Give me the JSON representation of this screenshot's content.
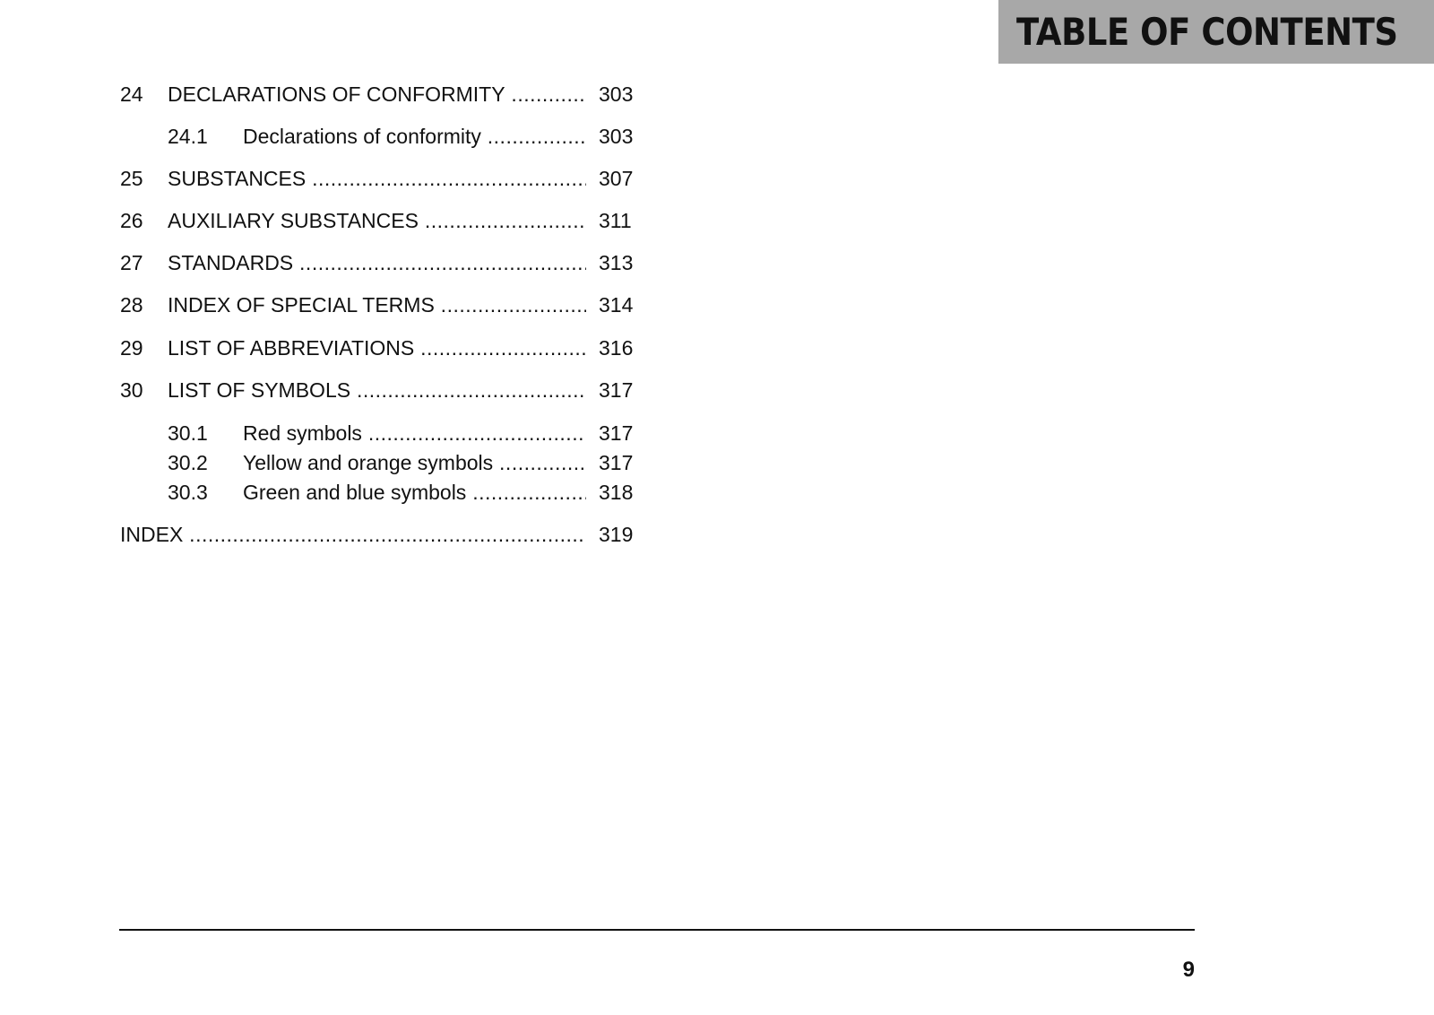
{
  "header": {
    "title": "TABLE OF CONTENTS",
    "background_color": "#a8a8a8"
  },
  "toc": {
    "entries": [
      {
        "level": "main",
        "number": "24",
        "title": "DECLARATIONS OF CONFORMITY",
        "page": "303"
      },
      {
        "level": "sub",
        "number": "24.1",
        "title": "Declarations of conformity",
        "page": "303"
      },
      {
        "level": "main",
        "number": "25",
        "title": "SUBSTANCES",
        "page": "307"
      },
      {
        "level": "main",
        "number": "26",
        "title": "AUXILIARY SUBSTANCES",
        "page": "311"
      },
      {
        "level": "main",
        "number": "27",
        "title": "STANDARDS",
        "page": "313"
      },
      {
        "level": "main",
        "number": "28",
        "title": "INDEX OF SPECIAL TERMS",
        "page": "314"
      },
      {
        "level": "main",
        "number": "29",
        "title": "LIST OF ABBREVIATIONS",
        "page": "316"
      },
      {
        "level": "main",
        "number": "30",
        "title": "LIST OF SYMBOLS",
        "page": "317"
      },
      {
        "level": "sub",
        "number": "30.1",
        "title": "Red symbols",
        "page": "317"
      },
      {
        "level": "sub",
        "number": "30.2",
        "title": "Yellow and orange symbols",
        "page": "317"
      },
      {
        "level": "sub",
        "number": "30.3",
        "title": "Green and blue symbols",
        "page": "318"
      },
      {
        "level": "plain",
        "number": "",
        "title": "INDEX",
        "page": "319"
      }
    ]
  },
  "footer": {
    "page_number": "9"
  }
}
